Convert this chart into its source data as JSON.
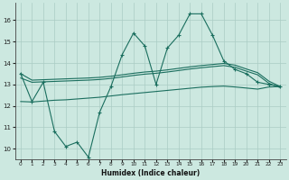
{
  "xlabel": "Humidex (Indice chaleur)",
  "bg_color": "#cce8e0",
  "line_color": "#1a6e5e",
  "grid_color": "#aaccC4",
  "x_values": [
    0,
    1,
    2,
    3,
    4,
    5,
    6,
    7,
    8,
    9,
    10,
    11,
    12,
    13,
    14,
    15,
    16,
    17,
    18,
    19,
    20,
    21,
    22,
    23
  ],
  "y_jagged": [
    13.5,
    12.2,
    13.1,
    10.8,
    10.1,
    10.3,
    9.6,
    11.7,
    12.9,
    14.4,
    15.4,
    14.8,
    13.0,
    14.7,
    15.3,
    16.3,
    16.3,
    15.3,
    14.1,
    13.7,
    13.5,
    13.1,
    13.0,
    12.9
  ],
  "y_upper": [
    13.5,
    13.2,
    13.22,
    13.24,
    13.26,
    13.28,
    13.3,
    13.33,
    13.38,
    13.45,
    13.52,
    13.58,
    13.62,
    13.68,
    13.75,
    13.82,
    13.88,
    13.93,
    13.98,
    13.9,
    13.72,
    13.55,
    13.15,
    12.9
  ],
  "y_mid": [
    13.3,
    13.1,
    13.12,
    13.14,
    13.16,
    13.18,
    13.2,
    13.23,
    13.28,
    13.35,
    13.42,
    13.48,
    13.52,
    13.58,
    13.65,
    13.72,
    13.78,
    13.83,
    13.88,
    13.8,
    13.62,
    13.45,
    13.05,
    12.85
  ],
  "y_lower": [
    12.2,
    12.18,
    12.22,
    12.26,
    12.28,
    12.32,
    12.36,
    12.4,
    12.46,
    12.52,
    12.57,
    12.62,
    12.67,
    12.72,
    12.77,
    12.82,
    12.87,
    12.9,
    12.92,
    12.88,
    12.83,
    12.78,
    12.88,
    12.9
  ],
  "ylim": [
    9.5,
    16.8
  ],
  "yticks": [
    10,
    11,
    12,
    13,
    14,
    15,
    16
  ],
  "xlim": [
    -0.5,
    23.5
  ],
  "xticks": [
    0,
    1,
    2,
    3,
    4,
    5,
    6,
    7,
    8,
    9,
    10,
    11,
    12,
    13,
    14,
    15,
    16,
    17,
    18,
    19,
    20,
    21,
    22,
    23
  ]
}
